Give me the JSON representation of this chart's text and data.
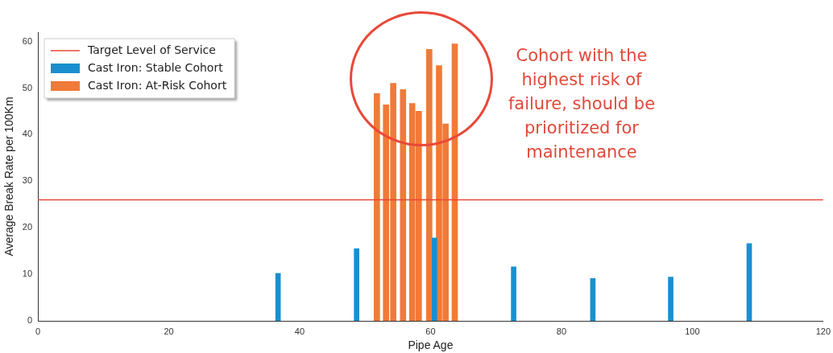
{
  "chart_data": {
    "type": "bar",
    "xlabel": "Pipe Age",
    "ylabel": "Average Break Rate per 100Km",
    "xlim": [
      0,
      120
    ],
    "xticks": [
      0,
      20,
      40,
      60,
      80,
      100,
      120
    ],
    "ylim": [
      0,
      62
    ],
    "yticks": [
      0,
      10,
      20,
      30,
      40,
      50,
      60
    ],
    "series": [
      {
        "name": "Cast Iron: Stable Cohort",
        "color": "#1a8fcf",
        "x": [
          36.7,
          48.7,
          60.6,
          72.7,
          84.8,
          96.7,
          108.7
        ],
        "values": [
          10.2,
          15.5,
          17.8,
          11.6,
          9.1,
          9.4,
          16.6
        ]
      },
      {
        "name": "Cast Iron: At-Risk Cohort",
        "color": "#f07a38",
        "x": [
          51.8,
          53.2,
          54.3,
          55.8,
          57.2,
          58.2,
          59.8,
          61.3,
          62.3,
          63.7
        ],
        "values": [
          48.8,
          46.4,
          51.0,
          49.7,
          46.7,
          45.0,
          58.3,
          54.8,
          42.3,
          59.5
        ]
      }
    ],
    "ref_lines": [
      {
        "axis": "y",
        "value": 26,
        "label": "Target Level of Service",
        "color": "#e8493a"
      }
    ],
    "annotations": [
      "Cohort with the highest risk of failure, should be prioritized for maintenance"
    ],
    "legend": "top left",
    "grid": false
  }
}
